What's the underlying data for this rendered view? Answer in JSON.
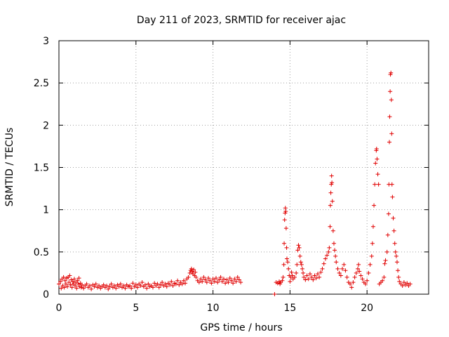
{
  "chart_data": {
    "type": "scatter",
    "title": "Day 211 of 2023, SRMTID for receiver ajac",
    "xlabel": "GPS time / hours",
    "ylabel": "SRMTID / TECUs",
    "xlim": [
      0,
      24
    ],
    "ylim": [
      0,
      3
    ],
    "xticks": [
      0,
      5,
      10,
      15,
      20
    ],
    "yticks": [
      0,
      0.5,
      1,
      1.5,
      2,
      2.5,
      3
    ],
    "xtick_labels": [
      "0",
      "5",
      "10",
      "15",
      "20"
    ],
    "ytick_labels": [
      "0",
      "0.5",
      "1",
      "1.5",
      "2",
      "2.5",
      "3"
    ],
    "grid": true,
    "marker": "+",
    "series": [
      {
        "name": "SRMTID",
        "color": "#e00000",
        "points": [
          [
            0.0,
            0.12
          ],
          [
            0.1,
            0.15
          ],
          [
            0.15,
            0.07
          ],
          [
            0.2,
            0.18
          ],
          [
            0.25,
            0.1
          ],
          [
            0.3,
            0.2
          ],
          [
            0.35,
            0.08
          ],
          [
            0.4,
            0.16
          ],
          [
            0.45,
            0.12
          ],
          [
            0.5,
            0.19
          ],
          [
            0.55,
            0.09
          ],
          [
            0.6,
            0.2
          ],
          [
            0.65,
            0.14
          ],
          [
            0.7,
            0.22
          ],
          [
            0.75,
            0.11
          ],
          [
            0.8,
            0.17
          ],
          [
            0.85,
            0.08
          ],
          [
            0.9,
            0.15
          ],
          [
            0.95,
            0.12
          ],
          [
            1.0,
            0.18
          ],
          [
            1.05,
            0.1
          ],
          [
            1.1,
            0.14
          ],
          [
            1.15,
            0.07
          ],
          [
            1.2,
            0.16
          ],
          [
            1.25,
            0.12
          ],
          [
            1.3,
            0.19
          ],
          [
            1.35,
            0.09
          ],
          [
            1.4,
            0.13
          ],
          [
            1.45,
            0.08
          ],
          [
            1.5,
            0.11
          ],
          [
            1.6,
            0.07
          ],
          [
            1.7,
            0.1
          ],
          [
            1.8,
            0.12
          ],
          [
            1.9,
            0.08
          ],
          [
            2.0,
            0.1
          ],
          [
            2.1,
            0.06
          ],
          [
            2.2,
            0.11
          ],
          [
            2.3,
            0.09
          ],
          [
            2.4,
            0.12
          ],
          [
            2.5,
            0.08
          ],
          [
            2.6,
            0.1
          ],
          [
            2.7,
            0.07
          ],
          [
            2.8,
            0.09
          ],
          [
            2.9,
            0.11
          ],
          [
            3.0,
            0.08
          ],
          [
            3.1,
            0.1
          ],
          [
            3.2,
            0.06
          ],
          [
            3.3,
            0.09
          ],
          [
            3.4,
            0.12
          ],
          [
            3.5,
            0.08
          ],
          [
            3.6,
            0.1
          ],
          [
            3.7,
            0.07
          ],
          [
            3.8,
            0.11
          ],
          [
            3.9,
            0.09
          ],
          [
            4.0,
            0.12
          ],
          [
            4.1,
            0.08
          ],
          [
            4.2,
            0.1
          ],
          [
            4.3,
            0.07
          ],
          [
            4.4,
            0.11
          ],
          [
            4.5,
            0.09
          ],
          [
            4.6,
            0.1
          ],
          [
            4.7,
            0.07
          ],
          [
            4.8,
            0.13
          ],
          [
            4.9,
            0.09
          ],
          [
            5.0,
            0.11
          ],
          [
            5.1,
            0.08
          ],
          [
            5.2,
            0.12
          ],
          [
            5.3,
            0.1
          ],
          [
            5.4,
            0.14
          ],
          [
            5.5,
            0.09
          ],
          [
            5.6,
            0.11
          ],
          [
            5.7,
            0.07
          ],
          [
            5.8,
            0.12
          ],
          [
            5.9,
            0.09
          ],
          [
            6.0,
            0.1
          ],
          [
            6.1,
            0.08
          ],
          [
            6.2,
            0.13
          ],
          [
            6.3,
            0.1
          ],
          [
            6.4,
            0.12
          ],
          [
            6.5,
            0.08
          ],
          [
            6.6,
            0.11
          ],
          [
            6.7,
            0.14
          ],
          [
            6.8,
            0.1
          ],
          [
            6.9,
            0.12
          ],
          [
            7.0,
            0.09
          ],
          [
            7.1,
            0.13
          ],
          [
            7.2,
            0.11
          ],
          [
            7.3,
            0.15
          ],
          [
            7.4,
            0.1
          ],
          [
            7.5,
            0.13
          ],
          [
            7.6,
            0.12
          ],
          [
            7.7,
            0.16
          ],
          [
            7.8,
            0.11
          ],
          [
            7.9,
            0.14
          ],
          [
            8.0,
            0.12
          ],
          [
            8.1,
            0.16
          ],
          [
            8.2,
            0.13
          ],
          [
            8.3,
            0.18
          ],
          [
            8.4,
            0.2
          ],
          [
            8.5,
            0.25
          ],
          [
            8.55,
            0.28
          ],
          [
            8.6,
            0.3
          ],
          [
            8.65,
            0.27
          ],
          [
            8.7,
            0.24
          ],
          [
            8.75,
            0.29
          ],
          [
            8.8,
            0.22
          ],
          [
            8.85,
            0.26
          ],
          [
            8.9,
            0.2
          ],
          [
            9.0,
            0.16
          ],
          [
            9.1,
            0.14
          ],
          [
            9.2,
            0.18
          ],
          [
            9.3,
            0.15
          ],
          [
            9.4,
            0.2
          ],
          [
            9.5,
            0.17
          ],
          [
            9.6,
            0.14
          ],
          [
            9.7,
            0.19
          ],
          [
            9.8,
            0.16
          ],
          [
            9.9,
            0.13
          ],
          [
            10.0,
            0.18
          ],
          [
            10.1,
            0.15
          ],
          [
            10.2,
            0.19
          ],
          [
            10.3,
            0.14
          ],
          [
            10.4,
            0.17
          ],
          [
            10.5,
            0.2
          ],
          [
            10.6,
            0.15
          ],
          [
            10.7,
            0.18
          ],
          [
            10.8,
            0.13
          ],
          [
            10.9,
            0.17
          ],
          [
            11.0,
            0.14
          ],
          [
            11.1,
            0.19
          ],
          [
            11.2,
            0.16
          ],
          [
            11.3,
            0.13
          ],
          [
            11.4,
            0.18
          ],
          [
            11.5,
            0.15
          ],
          [
            11.6,
            0.2
          ],
          [
            11.7,
            0.17
          ],
          [
            11.8,
            0.14
          ],
          [
            14.0,
            0.0
          ],
          [
            14.1,
            0.14
          ],
          [
            14.2,
            0.13
          ],
          [
            14.3,
            0.15
          ],
          [
            14.35,
            0.12
          ],
          [
            14.4,
            0.14
          ],
          [
            14.5,
            0.16
          ],
          [
            14.55,
            0.2
          ],
          [
            14.6,
            0.35
          ],
          [
            14.62,
            0.6
          ],
          [
            14.65,
            0.88
          ],
          [
            14.68,
            0.96
          ],
          [
            14.7,
            1.02
          ],
          [
            14.72,
            0.98
          ],
          [
            14.75,
            0.78
          ],
          [
            14.78,
            0.55
          ],
          [
            14.8,
            0.42
          ],
          [
            14.85,
            0.38
          ],
          [
            14.9,
            0.3
          ],
          [
            14.95,
            0.22
          ],
          [
            15.0,
            0.15
          ],
          [
            15.05,
            0.2
          ],
          [
            15.1,
            0.26
          ],
          [
            15.15,
            0.22
          ],
          [
            15.2,
            0.18
          ],
          [
            15.3,
            0.2
          ],
          [
            15.4,
            0.25
          ],
          [
            15.45,
            0.35
          ],
          [
            15.5,
            0.52
          ],
          [
            15.55,
            0.58
          ],
          [
            15.6,
            0.55
          ],
          [
            15.65,
            0.45
          ],
          [
            15.7,
            0.38
          ],
          [
            15.75,
            0.35
          ],
          [
            15.8,
            0.3
          ],
          [
            15.85,
            0.25
          ],
          [
            15.9,
            0.2
          ],
          [
            16.0,
            0.17
          ],
          [
            16.1,
            0.22
          ],
          [
            16.2,
            0.18
          ],
          [
            16.3,
            0.24
          ],
          [
            16.4,
            0.2
          ],
          [
            16.5,
            0.17
          ],
          [
            16.6,
            0.22
          ],
          [
            16.7,
            0.19
          ],
          [
            16.8,
            0.24
          ],
          [
            16.9,
            0.2
          ],
          [
            17.0,
            0.26
          ],
          [
            17.1,
            0.3
          ],
          [
            17.2,
            0.36
          ],
          [
            17.3,
            0.42
          ],
          [
            17.4,
            0.46
          ],
          [
            17.5,
            0.5
          ],
          [
            17.55,
            0.55
          ],
          [
            17.6,
            0.8
          ],
          [
            17.62,
            1.05
          ],
          [
            17.65,
            1.2
          ],
          [
            17.68,
            1.3
          ],
          [
            17.7,
            1.4
          ],
          [
            17.72,
            1.32
          ],
          [
            17.75,
            1.1
          ],
          [
            17.8,
            0.75
          ],
          [
            17.85,
            0.6
          ],
          [
            17.9,
            0.52
          ],
          [
            17.95,
            0.45
          ],
          [
            18.0,
            0.38
          ],
          [
            18.1,
            0.3
          ],
          [
            18.2,
            0.25
          ],
          [
            18.3,
            0.22
          ],
          [
            18.4,
            0.3
          ],
          [
            18.5,
            0.35
          ],
          [
            18.6,
            0.28
          ],
          [
            18.7,
            0.2
          ],
          [
            18.8,
            0.14
          ],
          [
            18.9,
            0.12
          ],
          [
            19.0,
            0.08
          ],
          [
            19.1,
            0.14
          ],
          [
            19.2,
            0.2
          ],
          [
            19.3,
            0.25
          ],
          [
            19.4,
            0.3
          ],
          [
            19.45,
            0.35
          ],
          [
            19.5,
            0.27
          ],
          [
            19.6,
            0.22
          ],
          [
            19.7,
            0.18
          ],
          [
            19.8,
            0.14
          ],
          [
            19.9,
            0.12
          ],
          [
            20.0,
            0.16
          ],
          [
            20.1,
            0.25
          ],
          [
            20.2,
            0.35
          ],
          [
            20.3,
            0.45
          ],
          [
            20.35,
            0.6
          ],
          [
            20.4,
            0.8
          ],
          [
            20.45,
            1.05
          ],
          [
            20.5,
            1.3
          ],
          [
            20.55,
            1.55
          ],
          [
            20.6,
            1.7
          ],
          [
            20.62,
            1.72
          ],
          [
            20.65,
            1.6
          ],
          [
            20.7,
            1.42
          ],
          [
            20.75,
            1.3
          ],
          [
            20.8,
            0.12
          ],
          [
            20.9,
            0.14
          ],
          [
            21.0,
            0.16
          ],
          [
            21.1,
            0.2
          ],
          [
            21.15,
            0.36
          ],
          [
            21.2,
            0.4
          ],
          [
            21.3,
            0.5
          ],
          [
            21.35,
            0.7
          ],
          [
            21.4,
            0.95
          ],
          [
            21.42,
            1.3
          ],
          [
            21.45,
            1.8
          ],
          [
            21.47,
            2.1
          ],
          [
            21.5,
            2.4
          ],
          [
            21.52,
            2.6
          ],
          [
            21.55,
            2.62
          ],
          [
            21.58,
            2.3
          ],
          [
            21.6,
            1.9
          ],
          [
            21.62,
            1.3
          ],
          [
            21.65,
            1.15
          ],
          [
            21.7,
            0.9
          ],
          [
            21.75,
            0.75
          ],
          [
            21.8,
            0.6
          ],
          [
            21.85,
            0.5
          ],
          [
            21.9,
            0.45
          ],
          [
            21.95,
            0.38
          ],
          [
            22.0,
            0.28
          ],
          [
            22.05,
            0.2
          ],
          [
            22.1,
            0.15
          ],
          [
            22.2,
            0.12
          ],
          [
            22.3,
            0.1
          ],
          [
            22.4,
            0.14
          ],
          [
            22.5,
            0.11
          ],
          [
            22.6,
            0.13
          ],
          [
            22.7,
            0.1
          ],
          [
            22.8,
            0.12
          ]
        ]
      }
    ]
  }
}
